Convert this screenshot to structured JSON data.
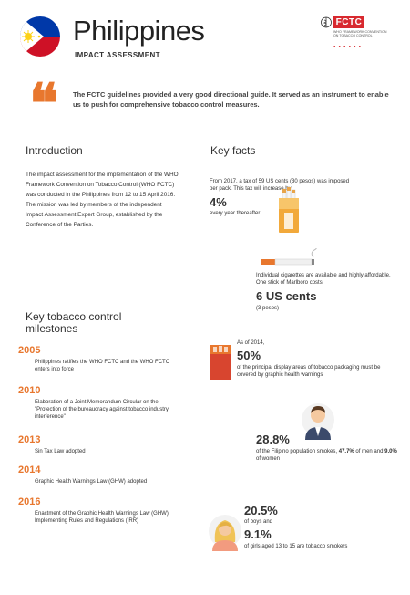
{
  "header": {
    "title": "Philippines",
    "subtitle": "IMPACT ASSESSMENT",
    "logo": {
      "badge": "FCTC",
      "subtitle": "WHO FRAMEWORK CONVENTION ON TOBACCO CONTROL"
    }
  },
  "quote": {
    "text": "The FCTC guidelines provided a very good directional guide. It served as an instrument to enable us to push for comprehensive tobacco control measures."
  },
  "introduction": {
    "heading": "Introduction",
    "body": "The impact assessment for the implementation of the WHO Framework Convention on Tobacco Control (WHO FCTC) was conducted in the Philippines from 12 to 15 April 2016. The mission was led by members of the independent Impact Assessment Expert Group, established by the Conference of the Parties."
  },
  "milestones": {
    "heading": "Key tobacco control milestones",
    "items": [
      {
        "year": "2005",
        "text": "Philippines ratifies the WHO FCTC and the WHO FCTC enters into force"
      },
      {
        "year": "2010",
        "text": "Elaboration of a Joint Memorandum Circular on the \"Protection of the bureaucracy against tobacco industry interference\""
      },
      {
        "year": "2013",
        "text": "Sin Tax Law adopted"
      },
      {
        "year": "2014",
        "text": "Graphic Health Warnings Law (GHW) adopted"
      },
      {
        "year": "2016",
        "text": "Enactment of the Graphic Health Warnings Law (GHW) Implementing Rules and Regulations (IRR)"
      }
    ]
  },
  "key_facts": {
    "heading": "Key facts",
    "tax": {
      "intro": "From 2017, a tax of 59 US cents (30 pesos) was imposed per pack. This tax will increase by",
      "value": "4%",
      "suffix": "every year thereafter"
    },
    "price": {
      "intro": "Individual cigarettes are available and highly affordable. One stick of Marlboro costs",
      "value": "6 US cents",
      "suffix": "(3 pesos)"
    },
    "warnings": {
      "intro": "As of 2014,",
      "value": "50%",
      "suffix": "of the principal display areas of tobacco packaging must be covered by graphic health warnings"
    },
    "smokers": {
      "value": "28.8%",
      "text_a": "of the Filipino population smokes,",
      "men_value": "47.7%",
      "text_b": "of men and",
      "women_value": "9.0%",
      "text_c": "of women"
    },
    "youth": {
      "boys_value": "20.5%",
      "boys_text": "of boys and",
      "girls_value": "9.1%",
      "girls_text": "of girls aged 13 to 15 are tobacco smokers"
    }
  },
  "colors": {
    "accent": "#e8772e",
    "fctc_red": "#d8292f",
    "flag_blue": "#0038a8",
    "flag_red": "#ce1126",
    "flag_yellow": "#fcd116"
  }
}
